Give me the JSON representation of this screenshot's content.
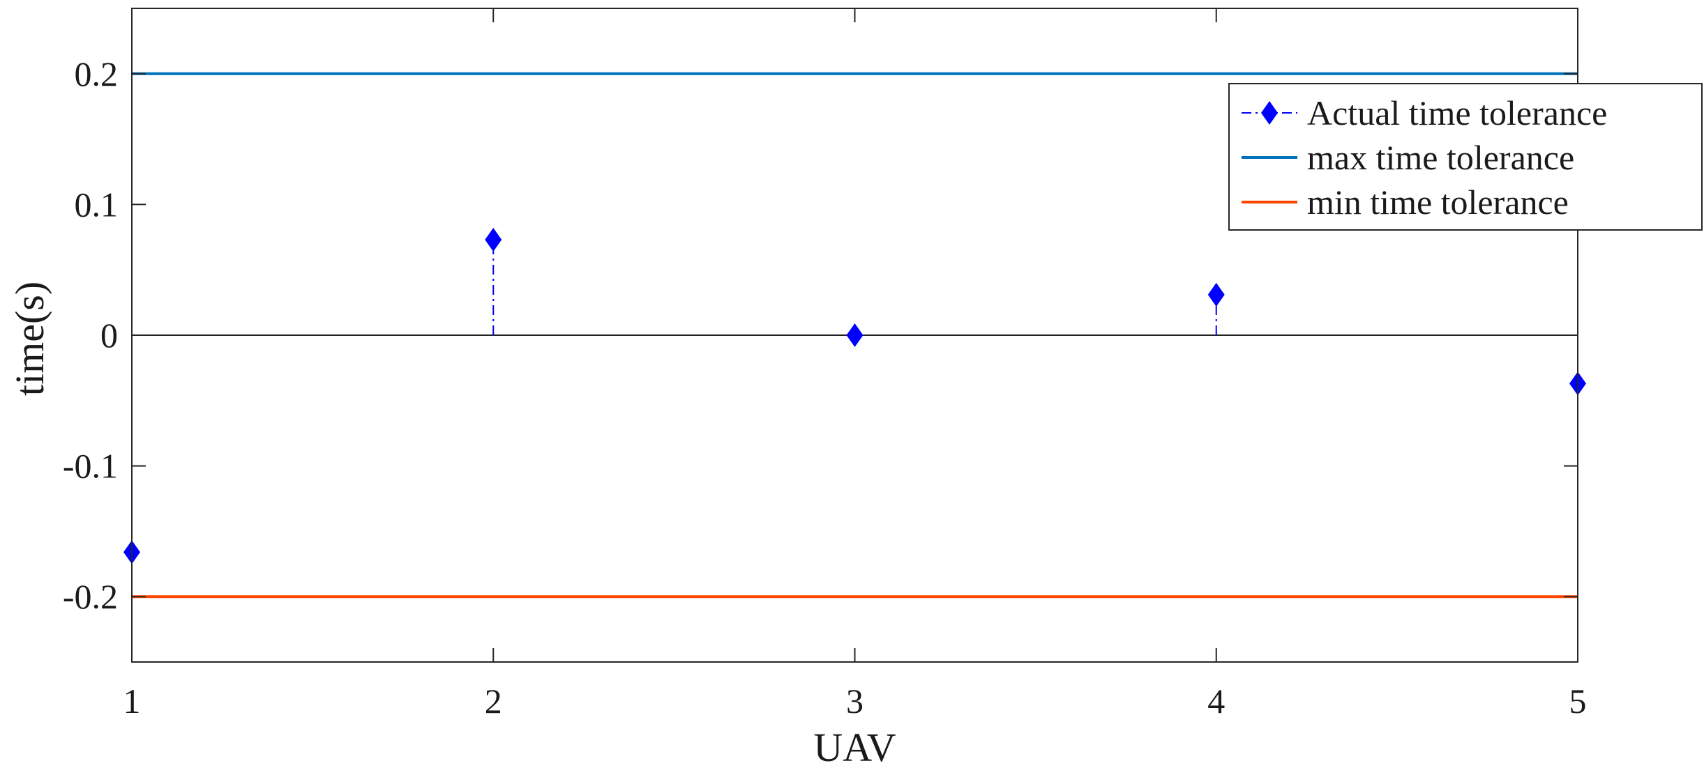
{
  "chart_data": {
    "type": "scatter",
    "title": "",
    "xlabel": "UAV",
    "ylabel": "time(s)",
    "xlim": [
      1,
      5
    ],
    "ylim": [
      -0.25,
      0.25
    ],
    "x_ticks": [
      1,
      2,
      3,
      4,
      5
    ],
    "x_tick_labels": [
      "1",
      "2",
      "3",
      "4",
      "5"
    ],
    "y_ticks": [
      -0.2,
      -0.1,
      0,
      0.1,
      0.2
    ],
    "y_tick_labels": [
      "-0.2",
      "-0.1",
      "0",
      "0.1",
      "0.2"
    ],
    "grid": false,
    "legend_position": "top-right",
    "series": [
      {
        "name": "Actual time tolerance",
        "style": "stem",
        "marker": "diamond",
        "line": "dash-dot",
        "color": "#0000ff",
        "x": [
          1,
          2,
          3,
          4,
          5
        ],
        "y": [
          -0.166,
          0.073,
          0.0,
          0.031,
          -0.037
        ]
      },
      {
        "name": "max time tolerance",
        "style": "line",
        "color": "#0072bd",
        "x": [
          1,
          5
        ],
        "y": [
          0.2,
          0.2
        ]
      },
      {
        "name": "min time tolerance",
        "style": "line",
        "color": "#ff4500",
        "x": [
          1,
          5
        ],
        "y": [
          -0.2,
          -0.2
        ]
      }
    ]
  }
}
